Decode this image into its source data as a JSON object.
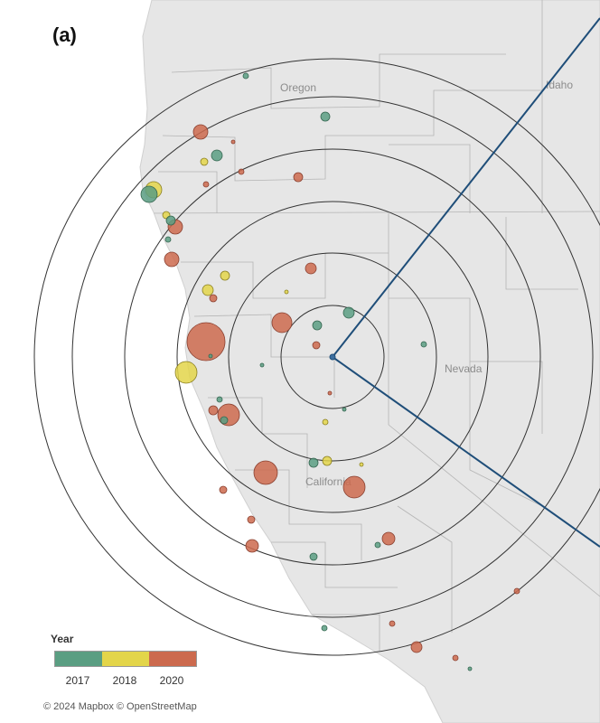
{
  "panel_label": "(a)",
  "region_labels": [
    "Oregon",
    "Idaho",
    "Nevada",
    "California"
  ],
  "legend": {
    "title": "Year",
    "entries": [
      {
        "label": "2017",
        "color": "#5a9e82"
      },
      {
        "label": "2018",
        "color": "#e3d54a"
      },
      {
        "label": "2020",
        "color": "#cc6a4e"
      }
    ]
  },
  "attribution": "© 2024 Mapbox © OpenStreetMap",
  "colors": {
    "land": "#e6e6e6",
    "ocean": "#ffffff",
    "rings": "#333333",
    "sector_lines": "#1f4e79",
    "borders": "#b4b4b4"
  }
}
